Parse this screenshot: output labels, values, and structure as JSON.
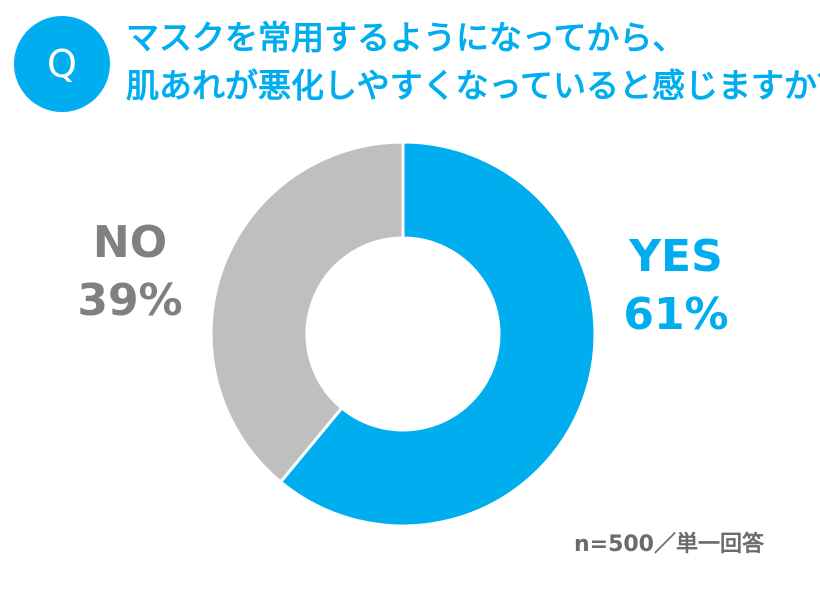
{
  "question": {
    "badge": "Q",
    "line1": "マスクを常用するようになってから、",
    "line2": "肌あれが悪化しやすくなっていると感じますか？"
  },
  "chart_data": {
    "type": "pie",
    "donut": true,
    "start": "top",
    "direction": "clockwise",
    "slices": [
      {
        "label": "YES",
        "value": 61,
        "display": "61%",
        "color": "#00aeef"
      },
      {
        "label": "NO",
        "value": 39,
        "display": "39%",
        "color": "#bfbfbf"
      }
    ]
  },
  "note": "n=500／単一回答",
  "colors": {
    "accent": "#00aeef",
    "no_text": "#808080",
    "separator": "#ffffff"
  }
}
